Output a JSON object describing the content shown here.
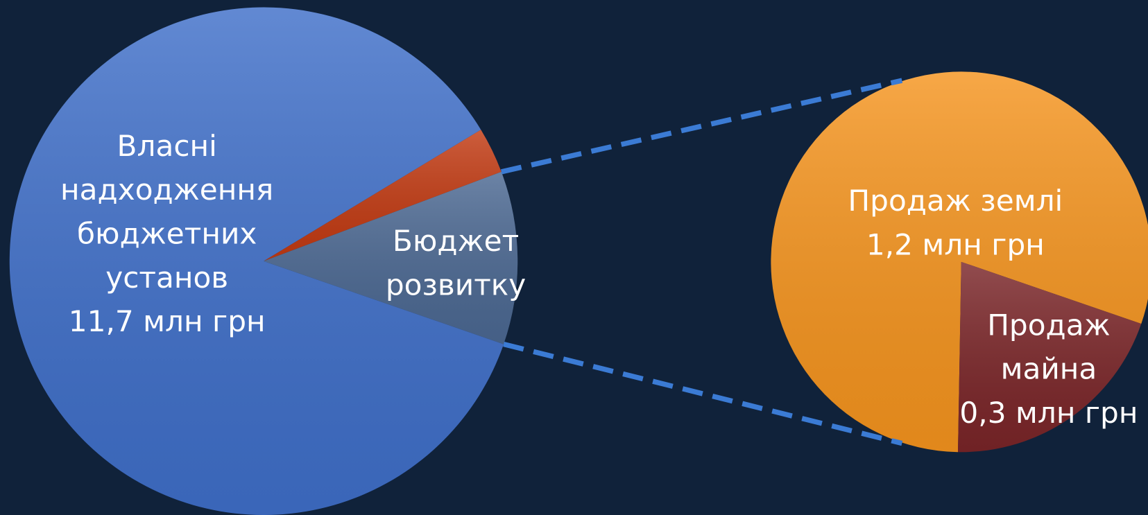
{
  "chart_data": {
    "type": "pie-of-pie",
    "primary": {
      "categories": [
        "Власні надходження бюджетних установ",
        null,
        "Бюджет розвитку"
      ],
      "values": [
        11.7,
        0.4,
        1.5
      ],
      "value_labels": [
        "11,7 млн грн",
        null,
        null
      ],
      "colors": [
        "#3f6fc9",
        "#c23a12",
        "#4b6892"
      ]
    },
    "secondary": {
      "categories": [
        "Продаж землі",
        "Продаж майна"
      ],
      "values": [
        1.2,
        0.3
      ],
      "value_labels": [
        "1,2 млн грн",
        "0,3 млн грн"
      ],
      "colors": [
        "#f5941e",
        "#7a2528"
      ]
    },
    "connector_color": "#3b7bd4"
  }
}
